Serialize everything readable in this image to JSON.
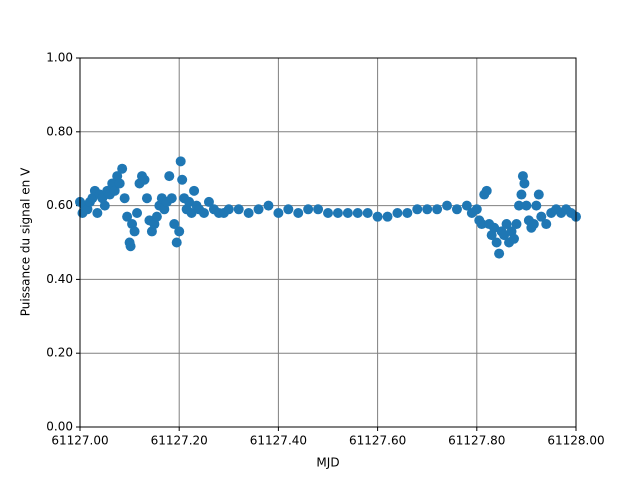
{
  "chart_data": {
    "type": "scatter",
    "xlabel": "MJD",
    "ylabel": "Puissance du signal en V",
    "color": "#1f77b4",
    "grid": true,
    "xlim": [
      61127.0,
      61128.0
    ],
    "xticks": [
      {
        "value": 61127.0,
        "label": "61127.00"
      },
      {
        "value": 61127.2,
        "label": "61127.20"
      },
      {
        "value": 61127.4,
        "label": "61127.40"
      },
      {
        "value": 61127.6,
        "label": "61127.60"
      },
      {
        "value": 61127.8,
        "label": "61127.80"
      },
      {
        "value": 61128.0,
        "label": "61128.00"
      }
    ],
    "ylim": [
      0,
      1
    ],
    "yticks": [
      {
        "value": 0,
        "label": "0.00"
      },
      {
        "value": 0.2,
        "label": "0.20"
      },
      {
        "value": 0.4,
        "label": "0.40"
      },
      {
        "value": 0.6,
        "label": "0.60"
      },
      {
        "value": 0.8,
        "label": "0.80"
      },
      {
        "value": 1,
        "label": "1.00"
      }
    ],
    "x": [
      61127.0,
      61127.005,
      61127.01,
      61127.015,
      61127.02,
      61127.025,
      61127.03,
      61127.035,
      61127.04,
      61127.045,
      61127.05,
      61127.055,
      61127.06,
      61127.065,
      61127.07,
      61127.075,
      61127.08,
      61127.085,
      61127.09,
      61127.095,
      61127.1,
      61127.102,
      61127.105,
      61127.11,
      61127.115,
      61127.12,
      61127.125,
      61127.13,
      61127.135,
      61127.14,
      61127.145,
      61127.15,
      61127.155,
      61127.16,
      61127.165,
      61127.17,
      61127.175,
      61127.18,
      61127.185,
      61127.19,
      61127.195,
      61127.2,
      61127.203,
      61127.206,
      61127.21,
      61127.215,
      61127.22,
      61127.225,
      61127.23,
      61127.235,
      61127.24,
      61127.25,
      61127.26,
      61127.27,
      61127.28,
      61127.29,
      61127.3,
      61127.32,
      61127.34,
      61127.36,
      61127.38,
      61127.4,
      61127.42,
      61127.44,
      61127.46,
      61127.48,
      61127.5,
      61127.52,
      61127.54,
      61127.56,
      61127.58,
      61127.6,
      61127.62,
      61127.64,
      61127.66,
      61127.68,
      61127.7,
      61127.72,
      61127.74,
      61127.76,
      61127.78,
      61127.79,
      61127.8,
      61127.805,
      61127.81,
      61127.815,
      61127.82,
      61127.825,
      61127.83,
      61127.835,
      61127.84,
      61127.845,
      61127.85,
      61127.855,
      61127.86,
      61127.865,
      61127.87,
      61127.875,
      61127.88,
      61127.885,
      61127.89,
      61127.893,
      61127.896,
      61127.9,
      61127.905,
      61127.91,
      61127.915,
      61127.92,
      61127.925,
      61127.93,
      61127.94,
      61127.95,
      61127.96,
      61127.97,
      61127.98,
      61127.99,
      61128.0
    ],
    "values": [
      0.61,
      0.58,
      0.6,
      0.59,
      0.61,
      0.62,
      0.64,
      0.58,
      0.63,
      0.62,
      0.6,
      0.64,
      0.63,
      0.66,
      0.64,
      0.68,
      0.66,
      0.7,
      0.62,
      0.57,
      0.5,
      0.49,
      0.55,
      0.53,
      0.58,
      0.66,
      0.68,
      0.67,
      0.62,
      0.56,
      0.53,
      0.55,
      0.57,
      0.6,
      0.62,
      0.59,
      0.61,
      0.68,
      0.62,
      0.55,
      0.5,
      0.53,
      0.72,
      0.67,
      0.62,
      0.59,
      0.61,
      0.58,
      0.64,
      0.6,
      0.59,
      0.58,
      0.61,
      0.59,
      0.58,
      0.58,
      0.59,
      0.59,
      0.58,
      0.59,
      0.6,
      0.58,
      0.59,
      0.58,
      0.59,
      0.59,
      0.58,
      0.58,
      0.58,
      0.58,
      0.58,
      0.57,
      0.57,
      0.58,
      0.58,
      0.59,
      0.59,
      0.59,
      0.6,
      0.59,
      0.6,
      0.58,
      0.59,
      0.56,
      0.55,
      0.63,
      0.64,
      0.55,
      0.52,
      0.54,
      0.5,
      0.47,
      0.53,
      0.52,
      0.55,
      0.5,
      0.53,
      0.51,
      0.55,
      0.6,
      0.63,
      0.68,
      0.66,
      0.6,
      0.56,
      0.54,
      0.55,
      0.6,
      0.63,
      0.57,
      0.55,
      0.58,
      0.59,
      0.58,
      0.59,
      0.58,
      0.57
    ]
  }
}
